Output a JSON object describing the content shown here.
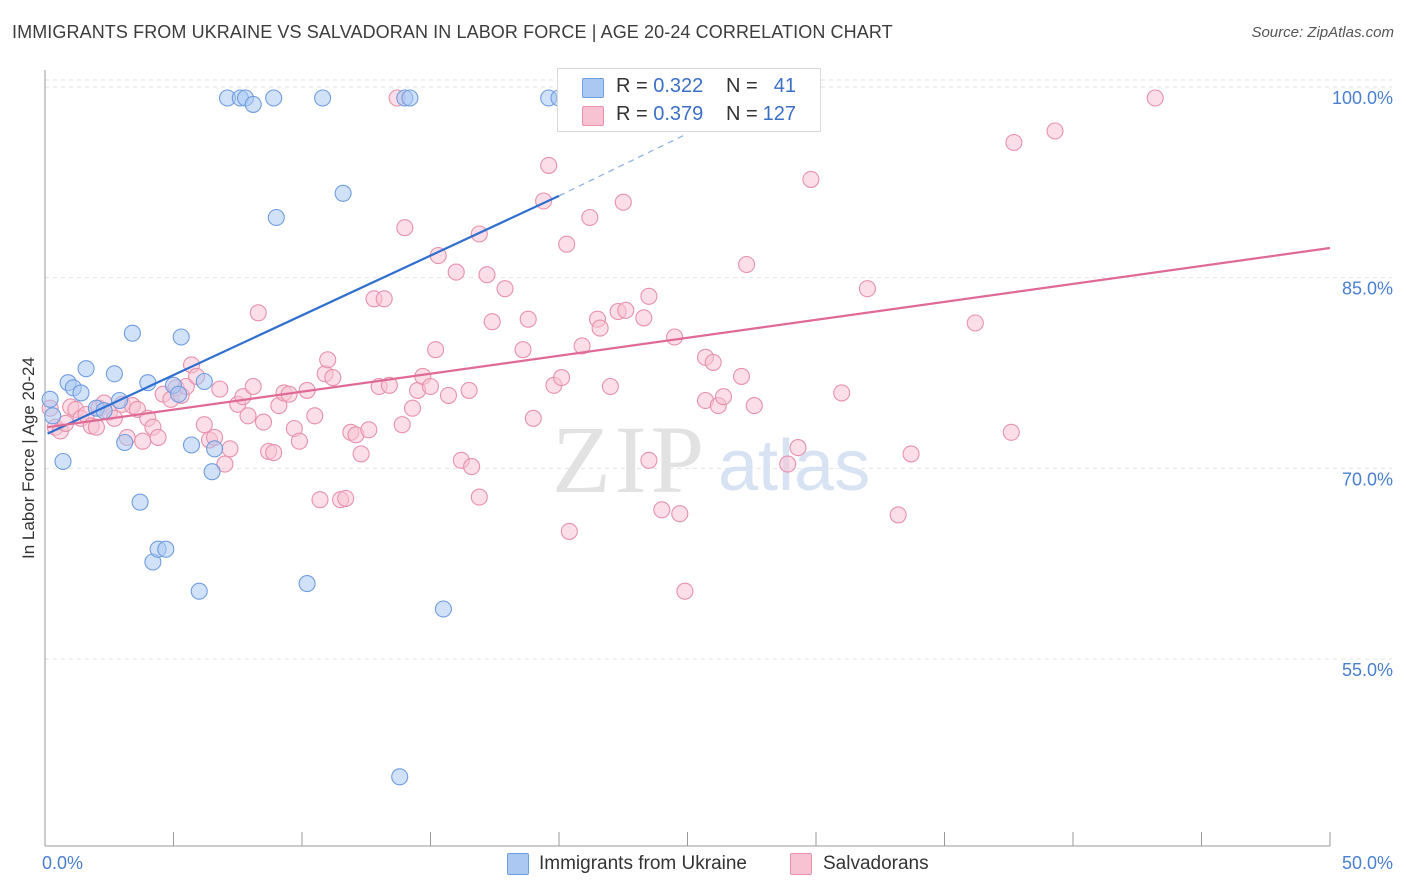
{
  "header": {
    "title": "IMMIGRANTS FROM UKRAINE VS SALVADORAN IN LABOR FORCE | AGE 20-24 CORRELATION CHART",
    "source": "Source: ZipAtlas.com"
  },
  "watermark": {
    "zip": "ZIP",
    "atlas": "atlas"
  },
  "legend": {
    "rows": [
      {
        "r_label": "R = ",
        "r_value": "0.322",
        "n_label": "N = ",
        "n_value": "41",
        "color": "#aac8f2",
        "border": "#6f9de0"
      },
      {
        "r_label": "R = ",
        "r_value": "0.379",
        "n_label": "N = ",
        "n_value": "127",
        "color": "#f7c3d3",
        "border": "#e891ad"
      }
    ]
  },
  "bottom_legend": {
    "items": [
      {
        "label": "Immigrants from Ukraine",
        "color": "#aac8f2",
        "border": "#6f9de0"
      },
      {
        "label": "Salvadorans",
        "color": "#f7c3d3",
        "border": "#e891ad"
      }
    ]
  },
  "chart_data": {
    "type": "scatter",
    "title": "IMMIGRANTS FROM UKRAINE VS SALVADORAN IN LABOR FORCE | AGE 20-24 CORRELATION CHART",
    "xlabel": "",
    "ylabel": "In Labor Force | Age 20-24",
    "xlim": [
      0,
      50
    ],
    "ylim": [
      40,
      101.5
    ],
    "x_tick_labels": [
      "0.0%",
      "50.0%"
    ],
    "y_ticks": [
      55,
      70,
      85,
      100
    ],
    "y_tick_labels": [
      "55.0%",
      "70.0%",
      "85.0%",
      "100.0%"
    ],
    "grid": true,
    "legend_position": "top-center",
    "series": [
      {
        "name": "Immigrants from Ukraine",
        "color": "#6f9de0",
        "fill": "#aac8f2",
        "trend": {
          "x0": 0.1,
          "y0": 73.6,
          "x1": 20.0,
          "y1": 92.3,
          "dash_to_x": 25.0,
          "dash_to_y": 97.2
        },
        "points": [
          [
            0.2,
            76.3
          ],
          [
            0.3,
            75.0
          ],
          [
            0.7,
            71.4
          ],
          [
            0.9,
            77.6
          ],
          [
            1.1,
            77.2
          ],
          [
            1.4,
            76.8
          ],
          [
            1.6,
            78.7
          ],
          [
            2.0,
            75.6
          ],
          [
            2.3,
            75.4
          ],
          [
            2.7,
            78.3
          ],
          [
            2.9,
            76.2
          ],
          [
            3.1,
            72.9
          ],
          [
            3.4,
            81.5
          ],
          [
            3.7,
            68.2
          ],
          [
            4.0,
            77.6
          ],
          [
            4.2,
            63.5
          ],
          [
            4.4,
            64.5
          ],
          [
            4.7,
            64.5
          ],
          [
            5.0,
            77.4
          ],
          [
            5.2,
            76.7
          ],
          [
            5.3,
            81.2
          ],
          [
            5.7,
            72.7
          ],
          [
            6.0,
            61.2
          ],
          [
            6.2,
            77.7
          ],
          [
            6.5,
            70.6
          ],
          [
            6.6,
            72.4
          ],
          [
            7.1,
            100.0
          ],
          [
            7.6,
            100.0
          ],
          [
            7.8,
            100.0
          ],
          [
            8.1,
            99.5
          ],
          [
            8.9,
            100.0
          ],
          [
            9.0,
            90.6
          ],
          [
            10.2,
            61.8
          ],
          [
            10.8,
            100.0
          ],
          [
            11.6,
            92.5
          ],
          [
            13.8,
            46.6
          ],
          [
            14.0,
            100.0
          ],
          [
            14.2,
            100.0
          ],
          [
            15.5,
            59.8
          ],
          [
            19.6,
            100.0
          ],
          [
            20.0,
            100.0
          ]
        ]
      },
      {
        "name": "Salvadorans",
        "color": "#e891ad",
        "fill": "#f7c3d3",
        "trend": {
          "x0": 0.1,
          "y0": 74.1,
          "x1": 50.0,
          "y1": 88.2
        },
        "points": [
          [
            0.2,
            75.6
          ],
          [
            0.4,
            74.1
          ],
          [
            0.6,
            73.8
          ],
          [
            0.8,
            74.4
          ],
          [
            1.0,
            75.7
          ],
          [
            1.2,
            75.5
          ],
          [
            1.4,
            74.8
          ],
          [
            1.6,
            75.1
          ],
          [
            1.8,
            74.2
          ],
          [
            2.0,
            74.1
          ],
          [
            2.1,
            75.6
          ],
          [
            2.3,
            76.0
          ],
          [
            2.5,
            75.3
          ],
          [
            2.7,
            74.8
          ],
          [
            3.0,
            75.9
          ],
          [
            3.2,
            73.3
          ],
          [
            3.4,
            75.8
          ],
          [
            3.6,
            75.5
          ],
          [
            3.8,
            73.0
          ],
          [
            4.0,
            74.8
          ],
          [
            4.2,
            74.1
          ],
          [
            4.4,
            73.3
          ],
          [
            4.6,
            76.7
          ],
          [
            4.9,
            76.3
          ],
          [
            5.1,
            77.2
          ],
          [
            5.3,
            76.6
          ],
          [
            5.5,
            77.3
          ],
          [
            5.7,
            79.0
          ],
          [
            5.9,
            78.1
          ],
          [
            6.2,
            74.3
          ],
          [
            6.4,
            73.1
          ],
          [
            6.6,
            73.3
          ],
          [
            6.8,
            77.1
          ],
          [
            7.0,
            71.2
          ],
          [
            7.2,
            72.4
          ],
          [
            7.5,
            75.9
          ],
          [
            7.7,
            76.5
          ],
          [
            7.9,
            75.0
          ],
          [
            8.1,
            77.3
          ],
          [
            8.3,
            83.1
          ],
          [
            8.5,
            74.5
          ],
          [
            8.7,
            72.2
          ],
          [
            8.9,
            72.1
          ],
          [
            9.1,
            75.8
          ],
          [
            9.3,
            76.8
          ],
          [
            9.5,
            76.7
          ],
          [
            9.7,
            74.0
          ],
          [
            9.9,
            73.0
          ],
          [
            10.2,
            77.0
          ],
          [
            10.5,
            75.0
          ],
          [
            10.7,
            68.4
          ],
          [
            10.9,
            78.3
          ],
          [
            11.0,
            79.4
          ],
          [
            11.2,
            78.0
          ],
          [
            11.5,
            68.4
          ],
          [
            11.7,
            68.5
          ],
          [
            11.9,
            73.7
          ],
          [
            12.1,
            73.5
          ],
          [
            12.3,
            72.0
          ],
          [
            12.6,
            73.9
          ],
          [
            12.8,
            84.2
          ],
          [
            13.0,
            77.3
          ],
          [
            13.2,
            84.2
          ],
          [
            13.4,
            77.4
          ],
          [
            13.7,
            100.0
          ],
          [
            13.9,
            74.3
          ],
          [
            14.0,
            89.8
          ],
          [
            14.3,
            75.6
          ],
          [
            14.5,
            77.0
          ],
          [
            14.7,
            78.1
          ],
          [
            15.0,
            77.3
          ],
          [
            15.2,
            80.2
          ],
          [
            15.3,
            87.6
          ],
          [
            15.7,
            76.6
          ],
          [
            16.0,
            86.3
          ],
          [
            16.2,
            71.5
          ],
          [
            16.5,
            77.0
          ],
          [
            16.6,
            71.0
          ],
          [
            16.9,
            68.6
          ],
          [
            16.9,
            89.3
          ],
          [
            17.2,
            86.1
          ],
          [
            17.4,
            82.4
          ],
          [
            17.9,
            85.0
          ],
          [
            18.6,
            80.2
          ],
          [
            18.8,
            82.6
          ],
          [
            19.0,
            74.8
          ],
          [
            19.4,
            91.9
          ],
          [
            19.6,
            94.7
          ],
          [
            19.8,
            77.4
          ],
          [
            20.1,
            78.0
          ],
          [
            20.3,
            88.5
          ],
          [
            20.4,
            65.9
          ],
          [
            20.9,
            80.5
          ],
          [
            21.2,
            90.6
          ],
          [
            21.5,
            82.6
          ],
          [
            21.6,
            81.9
          ],
          [
            22.0,
            77.3
          ],
          [
            22.3,
            83.2
          ],
          [
            22.5,
            91.8
          ],
          [
            22.6,
            83.3
          ],
          [
            23.3,
            82.7
          ],
          [
            23.5,
            84.4
          ],
          [
            23.5,
            71.5
          ],
          [
            24.0,
            67.6
          ],
          [
            24.5,
            81.2
          ],
          [
            24.7,
            67.3
          ],
          [
            24.9,
            61.2
          ],
          [
            25.7,
            79.6
          ],
          [
            25.7,
            76.2
          ],
          [
            26.0,
            79.2
          ],
          [
            26.2,
            75.8
          ],
          [
            26.4,
            76.5
          ],
          [
            27.1,
            78.1
          ],
          [
            27.3,
            86.9
          ],
          [
            27.6,
            75.8
          ],
          [
            28.9,
            71.2
          ],
          [
            29.3,
            72.5
          ],
          [
            29.8,
            93.6
          ],
          [
            31.0,
            76.8
          ],
          [
            32.0,
            85.0
          ],
          [
            33.2,
            67.2
          ],
          [
            33.7,
            72.0
          ],
          [
            36.2,
            82.3
          ],
          [
            37.6,
            73.7
          ],
          [
            37.7,
            96.5
          ],
          [
            39.3,
            97.4
          ],
          [
            43.2,
            100.0
          ]
        ]
      }
    ]
  }
}
